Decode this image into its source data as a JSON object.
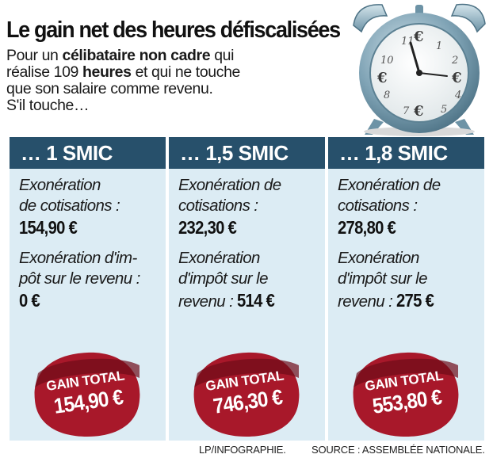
{
  "title": "Le gain net des heures défiscalisées",
  "intro": {
    "line1_a": "Pour un ",
    "line1_b": "célibataire non cadre",
    "line1_c": " qui",
    "line2_a": "réalise 109 ",
    "line2_b": "heures",
    "line2_c": " et qui ne touche",
    "line3": "que son salaire comme revenu.",
    "line4": "S'il touche…"
  },
  "clock": {
    "icon": "alarm-clock-icon",
    "numerals": [
      "11",
      "1",
      "2",
      "10",
      "4",
      "8",
      "7",
      "5"
    ],
    "symbols": [
      "€",
      "€",
      "€",
      "€"
    ],
    "colors": {
      "bell": "#8fb3c4",
      "face": "#f4f4f0",
      "rim": "#6f95a8",
      "hand": "#222222"
    }
  },
  "columns": [
    {
      "header": "… 1 SMIC",
      "cot_l1": "Exonération",
      "cot_l2": "de cotisations :",
      "cot_value": "154,90 €",
      "imp_l1": "Exonération d'im-",
      "imp_l2": "pôt sur le revenu :",
      "imp_value": "0 €",
      "total_label": "GAIN TOTAL",
      "total_value": "154,90 €"
    },
    {
      "header": "… 1,5 SMIC",
      "cot_l1": "Exonération de",
      "cot_l2": "cotisations :",
      "cot_value": "232,30 €",
      "imp_l1": "Exonération",
      "imp_l2": "d'impôt sur le",
      "imp_l3": "revenu : ",
      "imp_value": "514 €",
      "total_label": "GAIN TOTAL",
      "total_value": "746,30 €"
    },
    {
      "header": "… 1,8 SMIC",
      "cot_l1": "Exonération de",
      "cot_l2": "cotisations :",
      "cot_value": "278,80 €",
      "imp_l1": "Exonération",
      "imp_l2": "d'impôt sur le",
      "imp_l3": "revenu : ",
      "imp_value": "275 €",
      "total_label": "GAIN TOTAL",
      "total_value": "553,80 €"
    }
  ],
  "footer": {
    "credit": "LP/INFOGRAPHIE.",
    "source": "SOURCE : ASSEMBLÉE NATIONALE."
  },
  "colors": {
    "header_bg": "#27506b",
    "column_bg": "#dcecf4",
    "badge": "#a8182a",
    "badge_dark": "#6e0c18"
  }
}
